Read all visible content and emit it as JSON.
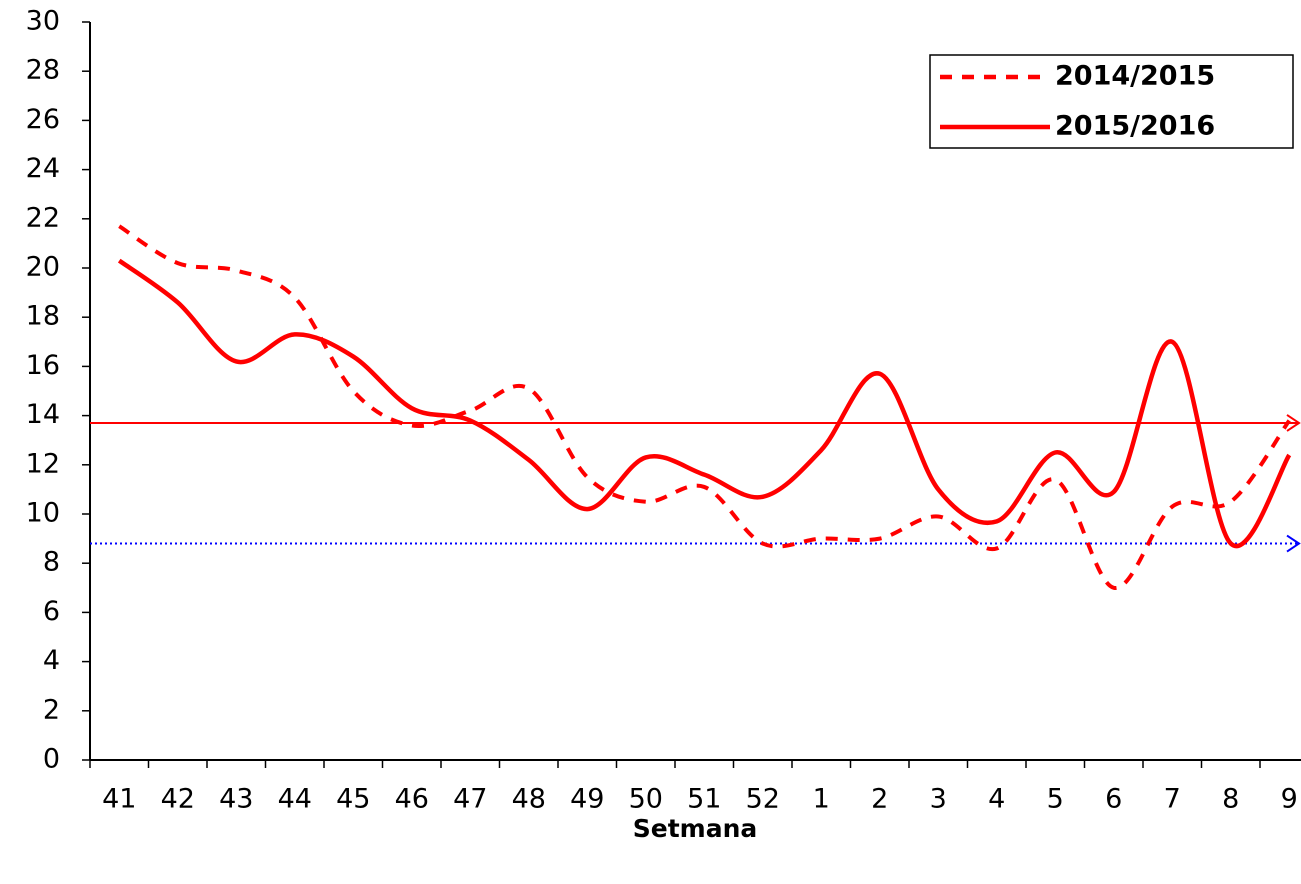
{
  "chart_data": {
    "type": "line",
    "x_label": "Setmana",
    "categories": [
      "41",
      "42",
      "43",
      "44",
      "45",
      "46",
      "47",
      "48",
      "49",
      "50",
      "51",
      "52",
      "1",
      "2",
      "3",
      "4",
      "5",
      "6",
      "7",
      "8",
      "9"
    ],
    "series": [
      {
        "name": "2014/2015",
        "color": "#ff0000",
        "dash": true,
        "values": [
          21.7,
          20.2,
          19.9,
          18.8,
          15,
          13.6,
          14.2,
          15.1,
          11.5,
          10.5,
          11.1,
          8.8,
          9.0,
          9.0,
          9.9,
          8.6,
          11.4,
          7.0,
          10.3,
          10.5,
          13.8
        ]
      },
      {
        "name": "2015/2016",
        "color": "#ff0000",
        "dash": false,
        "values": [
          20.3,
          18.6,
          16.2,
          17.3,
          16.4,
          14.3,
          13.8,
          12.2,
          10.2,
          12.3,
          11.6,
          10.7,
          12.6,
          15.7,
          11.0,
          9.7,
          12.5,
          10.9,
          17.0,
          8.8,
          12.4
        ]
      }
    ],
    "reference_lines": [
      {
        "value": 13.7,
        "color": "#ff0000",
        "dotted": false
      },
      {
        "value": 8.8,
        "color": "#0000ff",
        "dotted": true
      }
    ],
    "ylim": [
      0,
      30
    ],
    "yticks": [
      0,
      2,
      4,
      6,
      8,
      10,
      12,
      14,
      16,
      18,
      20,
      22,
      24,
      26,
      28,
      30
    ],
    "legend": "upper right"
  }
}
